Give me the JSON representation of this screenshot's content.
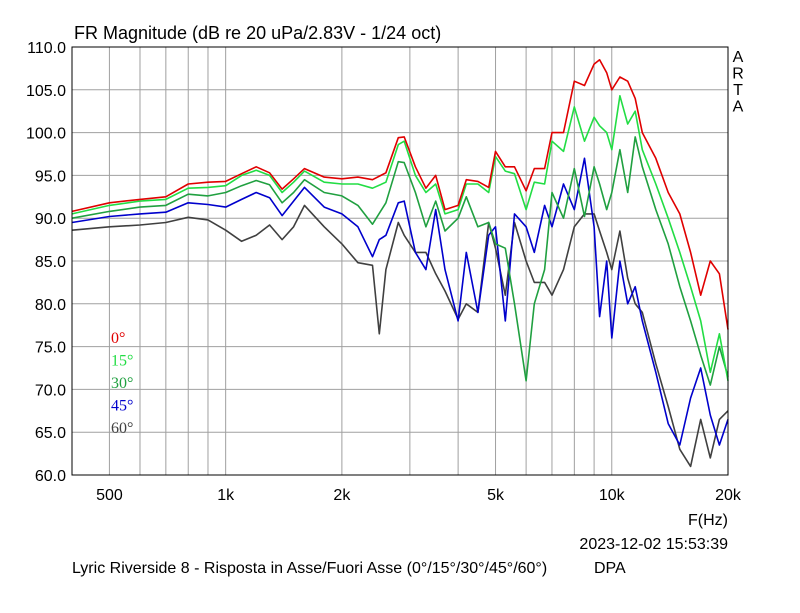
{
  "chart_data": {
    "type": "line",
    "title": "FR Magnitude (dB re 20 uPa/2.83V - 1/24 oct)",
    "brand": "ARTA",
    "xlabel": "F(Hz)",
    "x_scale": "log",
    "xlim": [
      400,
      20000
    ],
    "ylim": [
      60,
      110
    ],
    "grid": true,
    "xticks": [
      {
        "value": 500,
        "label": "500"
      },
      {
        "value": 1000,
        "label": "1k"
      },
      {
        "value": 2000,
        "label": "2k"
      },
      {
        "value": 5000,
        "label": "5k"
      },
      {
        "value": 10000,
        "label": "10k"
      },
      {
        "value": 20000,
        "label": "20k"
      }
    ],
    "yticks": [
      {
        "value": 60,
        "label": "60.0"
      },
      {
        "value": 65,
        "label": "65.0"
      },
      {
        "value": 70,
        "label": "70.0"
      },
      {
        "value": 75,
        "label": "75.0"
      },
      {
        "value": 80,
        "label": "80.0"
      },
      {
        "value": 85,
        "label": "85.0"
      },
      {
        "value": 90,
        "label": "90.0"
      },
      {
        "value": 95,
        "label": "95.0"
      },
      {
        "value": 100,
        "label": "100.0"
      },
      {
        "value": 105,
        "label": "105.0"
      },
      {
        "value": 110,
        "label": "110.0"
      }
    ],
    "timestamp": "2023-12-02   15:53:39",
    "caption": "Lyric Riverside 8 - Risposta in Asse/Fuori Asse (0°/15°/30°/45°/60°)",
    "caption_suffix": "DPA",
    "legend_position": "left",
    "series": [
      {
        "name": "0°",
        "color": "#e00000",
        "x": [
          400,
          500,
          600,
          700,
          800,
          900,
          1000,
          1100,
          1200,
          1300,
          1400,
          1500,
          1600,
          1800,
          2000,
          2200,
          2400,
          2600,
          2800,
          2900,
          3100,
          3300,
          3500,
          3700,
          4000,
          4200,
          4500,
          4800,
          5000,
          5300,
          5600,
          6000,
          6300,
          6700,
          7000,
          7500,
          8000,
          8500,
          9000,
          9300,
          9700,
          10000,
          10500,
          11000,
          11500,
          12000,
          13000,
          14000,
          15000,
          16000,
          17000,
          18000,
          19000,
          20000
        ],
        "y": [
          90.8,
          91.8,
          92.2,
          92.5,
          94.0,
          94.2,
          94.3,
          95.2,
          96.0,
          95.3,
          93.4,
          94.6,
          95.8,
          94.8,
          94.6,
          94.8,
          94.5,
          95.3,
          99.4,
          99.5,
          96.0,
          93.5,
          95.0,
          91.0,
          91.5,
          94.5,
          94.3,
          93.6,
          97.8,
          96.0,
          96.0,
          93.2,
          95.8,
          95.8,
          100.0,
          100.0,
          106.0,
          105.5,
          108.0,
          108.5,
          107.0,
          105.0,
          106.5,
          106.0,
          104.0,
          100.0,
          97.0,
          93.0,
          90.5,
          86.0,
          81.0,
          85.0,
          83.5,
          77.0
        ]
      },
      {
        "name": "15°",
        "color": "#22dd44",
        "x": [
          400,
          500,
          600,
          700,
          800,
          900,
          1000,
          1100,
          1200,
          1300,
          1400,
          1500,
          1600,
          1800,
          2000,
          2200,
          2400,
          2600,
          2800,
          2900,
          3100,
          3300,
          3500,
          3700,
          4000,
          4200,
          4500,
          4800,
          5000,
          5300,
          5600,
          6000,
          6300,
          6700,
          7000,
          7500,
          8000,
          8500,
          9000,
          9300,
          9700,
          10000,
          10500,
          11000,
          11500,
          12000,
          13000,
          14000,
          15000,
          16000,
          17000,
          18000,
          19000,
          20000
        ],
        "y": [
          90.5,
          91.5,
          92.0,
          92.2,
          93.5,
          93.6,
          93.8,
          95.0,
          95.6,
          95.0,
          93.0,
          94.2,
          95.5,
          94.2,
          94.0,
          94.0,
          93.5,
          94.2,
          98.6,
          99.0,
          95.0,
          93.0,
          94.0,
          90.5,
          91.0,
          94.0,
          94.0,
          93.0,
          97.2,
          95.5,
          95.2,
          91.0,
          94.2,
          94.0,
          99.0,
          97.8,
          103.0,
          99.0,
          101.8,
          100.8,
          100.0,
          98.0,
          104.3,
          101.0,
          102.5,
          98.0,
          94.0,
          90.0,
          86.0,
          82.0,
          78.0,
          72.0,
          76.5,
          71.0
        ]
      },
      {
        "name": "30°",
        "color": "#20a040",
        "x": [
          400,
          500,
          600,
          700,
          800,
          900,
          1000,
          1100,
          1200,
          1300,
          1400,
          1500,
          1600,
          1800,
          2000,
          2200,
          2400,
          2600,
          2800,
          2900,
          3100,
          3300,
          3500,
          3700,
          4000,
          4200,
          4500,
          4800,
          5000,
          5300,
          5600,
          6000,
          6300,
          6700,
          7000,
          7500,
          8000,
          8500,
          9000,
          9300,
          9700,
          10000,
          10500,
          11000,
          11500,
          12000,
          13000,
          14000,
          15000,
          16000,
          17000,
          18000,
          19000,
          20000
        ],
        "y": [
          90.0,
          90.8,
          91.3,
          91.5,
          92.8,
          92.6,
          93.0,
          93.8,
          94.4,
          93.9,
          91.8,
          93.0,
          94.5,
          93.0,
          92.6,
          91.5,
          89.3,
          91.8,
          96.6,
          96.5,
          93.0,
          89.0,
          92.0,
          88.5,
          90.0,
          92.5,
          89.0,
          89.5,
          87.0,
          86.5,
          80.0,
          71.0,
          80.0,
          84.0,
          93.0,
          90.0,
          95.8,
          90.2,
          96.0,
          94.0,
          91.0,
          93.0,
          98.0,
          93.0,
          99.5,
          96.0,
          91.0,
          87.0,
          82.0,
          78.0,
          74.0,
          70.5,
          75.0,
          71.5
        ]
      },
      {
        "name": "45°",
        "color": "#0000cc",
        "x": [
          400,
          500,
          600,
          700,
          800,
          900,
          1000,
          1100,
          1200,
          1300,
          1400,
          1500,
          1600,
          1800,
          2000,
          2200,
          2400,
          2500,
          2600,
          2800,
          2900,
          3100,
          3300,
          3500,
          3700,
          4000,
          4200,
          4500,
          4800,
          5000,
          5300,
          5600,
          6000,
          6300,
          6700,
          7000,
          7500,
          8000,
          8500,
          9000,
          9300,
          9700,
          10000,
          10500,
          11000,
          11500,
          12000,
          13000,
          14000,
          15000,
          16000,
          17000,
          18000,
          19000,
          20000
        ],
        "y": [
          89.5,
          90.2,
          90.5,
          90.7,
          91.8,
          91.6,
          91.3,
          92.2,
          93.0,
          92.4,
          90.3,
          92.0,
          93.6,
          91.3,
          90.5,
          89.0,
          85.5,
          87.5,
          88.0,
          91.8,
          92.0,
          86.0,
          84.0,
          91.0,
          84.0,
          78.0,
          86.0,
          79.0,
          88.0,
          89.0,
          78.0,
          90.5,
          89.0,
          86.0,
          91.5,
          89.0,
          94.0,
          91.0,
          97.0,
          89.0,
          78.5,
          85.0,
          76.0,
          85.0,
          80.0,
          82.0,
          78.0,
          72.0,
          66.0,
          63.5,
          69.0,
          72.5,
          67.0,
          63.5,
          66.5
        ]
      },
      {
        "name": "60°",
        "color": "#404040",
        "x": [
          400,
          500,
          600,
          700,
          800,
          900,
          1000,
          1100,
          1200,
          1300,
          1400,
          1500,
          1600,
          1800,
          2000,
          2200,
          2400,
          2500,
          2600,
          2800,
          2900,
          3100,
          3300,
          3500,
          3700,
          4000,
          4200,
          4500,
          4800,
          5000,
          5300,
          5600,
          6000,
          6300,
          6700,
          7000,
          7500,
          8000,
          8500,
          9000,
          9300,
          9700,
          10000,
          10500,
          11000,
          11500,
          12000,
          13000,
          14000,
          15000,
          16000,
          17000,
          18000,
          19000,
          20000
        ],
        "y": [
          88.6,
          89.0,
          89.2,
          89.5,
          90.1,
          89.8,
          88.6,
          87.3,
          88.0,
          89.2,
          87.5,
          89.0,
          91.5,
          89.0,
          87.0,
          84.8,
          84.5,
          76.5,
          84.0,
          89.5,
          88.0,
          86.0,
          86.0,
          83.5,
          81.5,
          78.2,
          80.0,
          79.0,
          89.5,
          86.5,
          81.0,
          89.5,
          85.0,
          82.5,
          82.5,
          81.0,
          84.0,
          89.0,
          90.5,
          90.5,
          88.5,
          86.0,
          84.0,
          88.5,
          83.0,
          80.0,
          79.0,
          73.0,
          68.0,
          63.0,
          61.0,
          66.5,
          62.0,
          66.5,
          67.5
        ]
      }
    ]
  }
}
